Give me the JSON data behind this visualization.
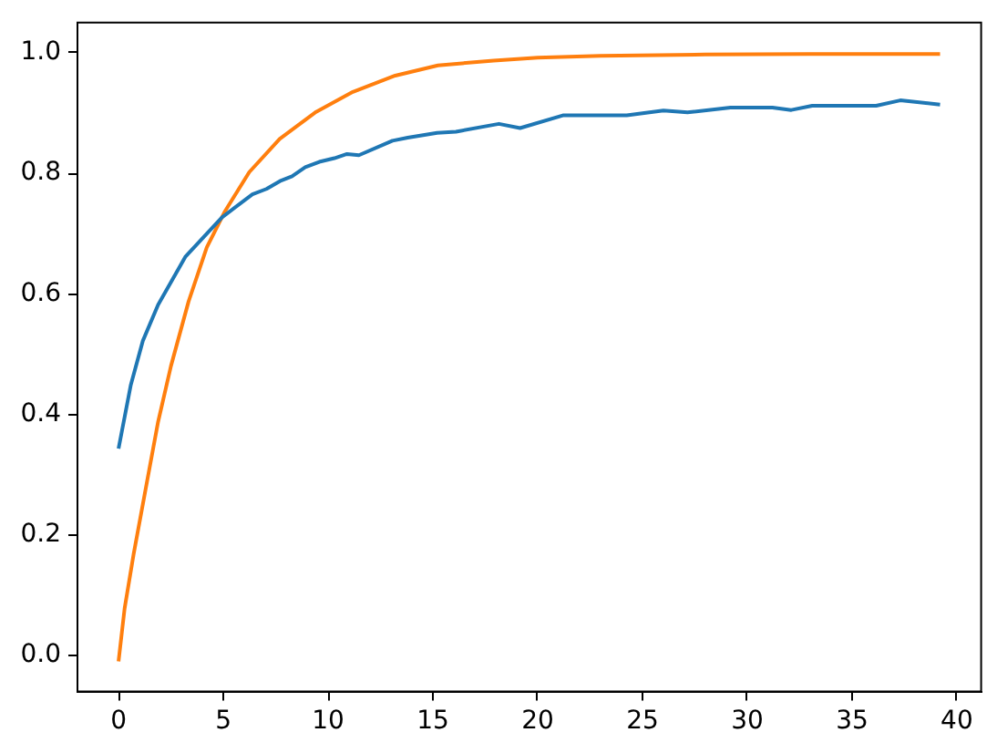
{
  "chart_data": {
    "type": "line",
    "series": [
      {
        "color": "#1f77b4",
        "x": [
          0,
          0.58,
          1.16,
          1.89,
          3.2,
          4.94,
          6.39,
          7.06,
          7.7,
          8.28,
          8.91,
          9.58,
          10.3,
          10.9,
          11.47,
          13.07,
          13.8,
          15.2,
          16.1,
          18.15,
          19.16,
          21.2,
          24.25,
          26.0,
          27.15,
          29.2,
          31.2,
          32.1,
          33.1,
          36.15,
          37.3,
          39.2
        ],
        "values": [
          0.343,
          0.448,
          0.522,
          0.582,
          0.662,
          0.727,
          0.765,
          0.774,
          0.787,
          0.795,
          0.81,
          0.819,
          0.825,
          0.832,
          0.83,
          0.854,
          0.859,
          0.867,
          0.869,
          0.882,
          0.875,
          0.896,
          0.896,
          0.904,
          0.901,
          0.909,
          0.909,
          0.905,
          0.912,
          0.912,
          0.921,
          0.914
        ]
      },
      {
        "color": "#ff7f0e",
        "x": [
          0,
          0.29,
          0.72,
          1.25,
          1.89,
          2.5,
          3.34,
          4.21,
          5.08,
          6.24,
          7.69,
          9.43,
          11.18,
          13.2,
          15.24,
          17.9,
          20,
          23,
          28,
          33,
          39.2
        ],
        "values": [
          -0.01,
          0.078,
          0.168,
          0.268,
          0.388,
          0.48,
          0.587,
          0.677,
          0.737,
          0.802,
          0.857,
          0.902,
          0.935,
          0.962,
          0.979,
          0.987,
          0.992,
          0.995,
          0.997,
          0.998,
          0.998
        ]
      }
    ],
    "xlim": [
      -1.96,
      41.16
    ],
    "xticks": [
      0,
      5,
      10,
      15,
      20,
      25,
      30,
      35,
      40
    ],
    "ylim": [
      -0.06,
      1.05
    ],
    "yticks": [
      {
        "value": 0,
        "label": "0.0"
      },
      0.2,
      0.4,
      0.6,
      0.8,
      {
        "value": 1,
        "label": "1.0"
      }
    ]
  }
}
